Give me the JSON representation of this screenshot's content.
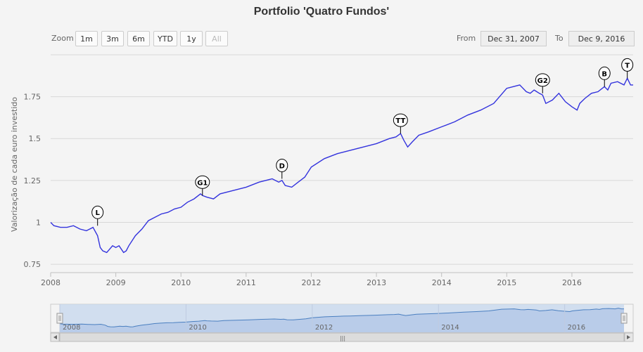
{
  "title": "Portfolio 'Quatro Fundos'",
  "range_selector": {
    "zoom_label": "Zoom",
    "buttons": [
      "1m",
      "3m",
      "6m",
      "YTD",
      "1y",
      "All"
    ],
    "selected": "All",
    "from_label": "From",
    "from_value": "Dec 31, 2007",
    "to_label": "To",
    "to_value": "Dec 9, 2016"
  },
  "navigator": {
    "x_ticks": [
      "2008",
      "2010",
      "2012",
      "2014",
      "2016"
    ],
    "scroll_grip": "|||"
  },
  "colors": {
    "line": "#3333dd",
    "grid": "#d8d8d8",
    "navigator_fill": "#c8d8ee",
    "navigator_line": "#4a7fc0"
  },
  "chart_data": {
    "type": "line",
    "title": "Portfolio 'Quatro Fundos'",
    "ylabel": "Valorização de cada euro investido",
    "xlabel": "",
    "x_ticks": [
      "2008",
      "2009",
      "2010",
      "2011",
      "2012",
      "2013",
      "2014",
      "2015",
      "2016"
    ],
    "y_ticks": [
      "0.75",
      "1",
      "1.25",
      "1.5",
      "1.75"
    ],
    "xlim": [
      2008.0,
      2016.94
    ],
    "ylim": [
      0.7,
      2.0
    ],
    "grid": true,
    "series": [
      {
        "x": [
          2008.0,
          2008.05,
          2008.15,
          2008.25,
          2008.35,
          2008.45,
          2008.55,
          2008.65,
          2008.72,
          2008.76,
          2008.8,
          2008.86,
          2008.95,
          2009.0,
          2009.05,
          2009.12,
          2009.16,
          2009.2,
          2009.3,
          2009.4,
          2009.5,
          2009.6,
          2009.7,
          2009.8,
          2009.9,
          2010.0,
          2010.1,
          2010.2,
          2010.3,
          2010.33,
          2010.4,
          2010.5,
          2010.6,
          2010.8,
          2011.0,
          2011.2,
          2011.4,
          2011.5,
          2011.55,
          2011.6,
          2011.7,
          2011.8,
          2011.9,
          2012.0,
          2012.2,
          2012.4,
          2012.5,
          2012.6,
          2012.8,
          2013.0,
          2013.2,
          2013.3,
          2013.37,
          2013.42,
          2013.48,
          2013.55,
          2013.65,
          2013.8,
          2014.0,
          2014.2,
          2014.4,
          2014.6,
          2014.8,
          2015.0,
          2015.1,
          2015.2,
          2015.3,
          2015.36,
          2015.42,
          2015.5,
          2015.55,
          2015.6,
          2015.7,
          2015.8,
          2015.9,
          2016.0,
          2016.08,
          2016.12,
          2016.2,
          2016.3,
          2016.4,
          2016.5,
          2016.55,
          2016.6,
          2016.7,
          2016.8,
          2016.85,
          2016.9,
          2016.94
        ],
        "y": [
          1.0,
          0.98,
          0.97,
          0.97,
          0.98,
          0.96,
          0.95,
          0.97,
          0.92,
          0.85,
          0.83,
          0.82,
          0.86,
          0.85,
          0.86,
          0.82,
          0.83,
          0.86,
          0.92,
          0.96,
          1.01,
          1.03,
          1.05,
          1.06,
          1.08,
          1.09,
          1.12,
          1.14,
          1.17,
          1.16,
          1.15,
          1.14,
          1.17,
          1.19,
          1.21,
          1.24,
          1.26,
          1.24,
          1.25,
          1.22,
          1.21,
          1.24,
          1.27,
          1.33,
          1.38,
          1.41,
          1.42,
          1.43,
          1.45,
          1.47,
          1.5,
          1.51,
          1.53,
          1.49,
          1.45,
          1.48,
          1.52,
          1.54,
          1.57,
          1.6,
          1.64,
          1.67,
          1.71,
          1.8,
          1.81,
          1.82,
          1.78,
          1.77,
          1.79,
          1.77,
          1.76,
          1.71,
          1.73,
          1.77,
          1.72,
          1.69,
          1.67,
          1.71,
          1.74,
          1.77,
          1.78,
          1.81,
          1.79,
          1.83,
          1.84,
          1.82,
          1.86,
          1.82,
          1.82
        ]
      }
    ],
    "flags": [
      {
        "x": 2008.72,
        "y": 0.98,
        "title": "L"
      },
      {
        "x": 2010.33,
        "y": 1.16,
        "title": "G1"
      },
      {
        "x": 2011.55,
        "y": 1.26,
        "title": "D"
      },
      {
        "x": 2013.37,
        "y": 1.53,
        "title": "TT"
      },
      {
        "x": 2015.55,
        "y": 1.77,
        "title": "G2"
      },
      {
        "x": 2016.5,
        "y": 1.81,
        "title": "B"
      },
      {
        "x": 2016.85,
        "y": 1.86,
        "title": "T"
      }
    ]
  }
}
